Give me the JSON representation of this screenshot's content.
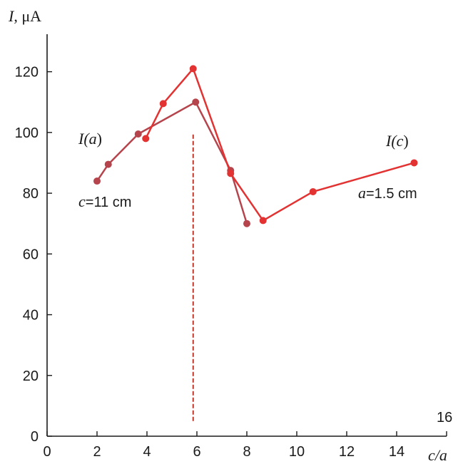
{
  "chart_data": {
    "type": "line",
    "xlabel": "c/a",
    "ylabel": "I, μA",
    "xlim": [
      0,
      16
    ],
    "ylim": [
      0,
      130
    ],
    "x_ticks": [
      0,
      2,
      4,
      6,
      8,
      10,
      12,
      14
    ],
    "x_end_label": "16",
    "y_ticks": [
      0,
      20,
      40,
      60,
      80,
      100,
      120
    ],
    "grid": false,
    "series": [
      {
        "name": "I(a)",
        "condition": "c=11 cm",
        "color": "#b5444c",
        "x": [
          2.0,
          2.45,
          3.65,
          5.95,
          7.35,
          8.0
        ],
        "y": [
          84,
          89.5,
          99.5,
          110,
          87.5,
          70
        ]
      },
      {
        "name": "I(c)",
        "condition": "a=1.5 cm",
        "color": "#e23232",
        "x": [
          3.95,
          4.65,
          5.85,
          7.35,
          8.65,
          10.65,
          14.7
        ],
        "y": [
          98,
          109.5,
          121,
          86.5,
          71,
          80.5,
          90
        ]
      }
    ],
    "reference_line": {
      "x": 5.85,
      "y_from": 5,
      "y_to": 100,
      "color": "#c0392b",
      "style": "dashed"
    },
    "labels": {
      "series_a": {
        "prefix": "I(",
        "var": "a",
        "suffix": ")"
      },
      "series_c": {
        "prefix": "I(",
        "var": "c",
        "suffix": ")"
      },
      "cond_a": {
        "var": "c",
        "rest": "=11 cm"
      },
      "cond_c": {
        "var": "a",
        "rest": "=1.5 cm"
      },
      "ylabel": {
        "var": "I",
        "rest": ", μA"
      }
    }
  }
}
